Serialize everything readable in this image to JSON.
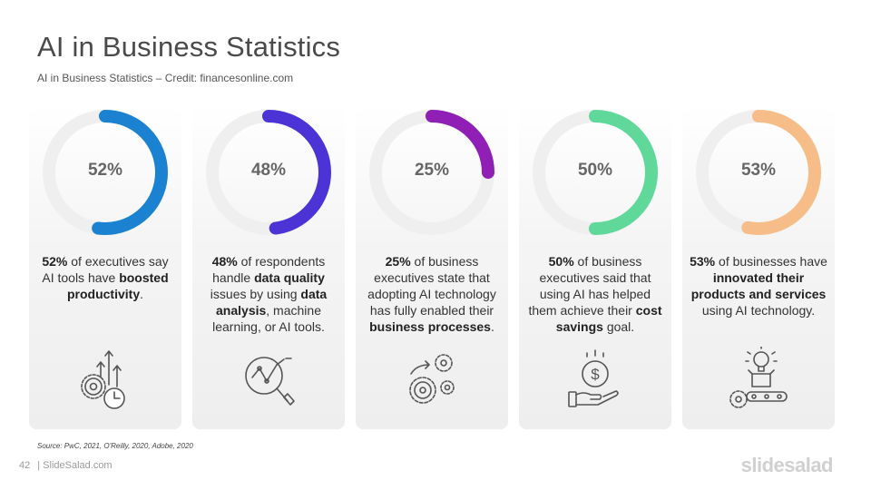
{
  "title": "AI in Business Statistics",
  "subtitle": "AI in Business Statistics – Credit: financesonline.com",
  "cards": [
    {
      "percent_label": "52%",
      "percent": 52,
      "color": "#1a82d1",
      "desc": [
        {
          "t": "52%",
          "b": true
        },
        {
          "t": " of executives say AI tools have ",
          "b": false
        },
        {
          "t": "boosted productivity",
          "b": true
        },
        {
          "t": ".",
          "b": false
        }
      ],
      "icon": "gears-growth-clock-icon"
    },
    {
      "percent_label": "48%",
      "percent": 48,
      "color": "#4b33d6",
      "desc": [
        {
          "t": "48%",
          "b": true
        },
        {
          "t": " of respondents handle ",
          "b": false
        },
        {
          "t": "data quality",
          "b": true
        },
        {
          "t": " issues by using ",
          "b": false
        },
        {
          "t": "data analysis",
          "b": true
        },
        {
          "t": ", machine learning, or AI tools.",
          "b": false
        }
      ],
      "icon": "data-analysis-magnifier-icon"
    },
    {
      "percent_label": "25%",
      "percent": 25,
      "color": "#8f1fb5",
      "desc": [
        {
          "t": "25%",
          "b": true
        },
        {
          "t": " of business executives state that adopting AI technology has fully enabled their ",
          "b": false
        },
        {
          "t": "business processes",
          "b": true
        },
        {
          "t": ".",
          "b": false
        }
      ],
      "icon": "process-gears-icon"
    },
    {
      "percent_label": "50%",
      "percent": 50,
      "color": "#5fd89a",
      "desc": [
        {
          "t": "50%",
          "b": true
        },
        {
          "t": " of business executives said that using AI has helped them achieve their ",
          "b": false
        },
        {
          "t": "cost savings",
          "b": true
        },
        {
          "t": " goal.",
          "b": false
        }
      ],
      "icon": "hand-dollar-coin-icon"
    },
    {
      "percent_label": "53%",
      "percent": 53,
      "color": "#f7bd88",
      "desc": [
        {
          "t": "53%",
          "b": true
        },
        {
          "t": " of businesses have ",
          "b": false
        },
        {
          "t": "innovated their products and services",
          "b": true
        },
        {
          "t": " using AI technology.",
          "b": false
        }
      ],
      "icon": "innovation-factory-icon"
    }
  ],
  "source": "Source: PwC, 2021, O'Reilly, 2020, Adobe, 2020",
  "footer": {
    "page_number": "42",
    "site": "| SlideSalad.com"
  },
  "brand": "slidesalad",
  "colors": {
    "track": "#efefef",
    "card_bg": "#f3f3f3",
    "icon_stroke": "#555555"
  }
}
